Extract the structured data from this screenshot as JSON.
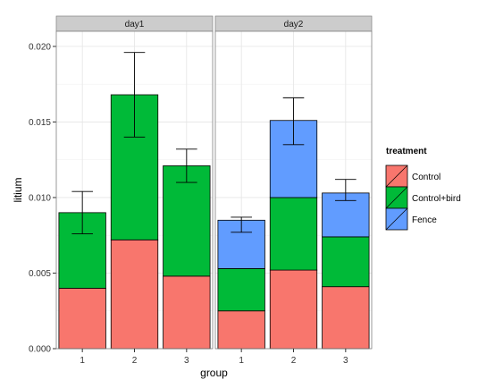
{
  "chart_data": {
    "type": "bar",
    "stacked": true,
    "xlabel": "group",
    "ylabel": "litium",
    "ylim": [
      0,
      0.021
    ],
    "yticks": [
      0.0,
      0.005,
      0.01,
      0.015,
      0.02
    ],
    "ytick_labels": [
      "0.000",
      "0.005",
      "0.010",
      "0.015",
      "0.020"
    ],
    "categories": [
      "1",
      "2",
      "3"
    ],
    "grid": true,
    "legend": {
      "title": "treatment",
      "placement": "right",
      "entries": [
        {
          "name": "Control",
          "color": "#F8766D"
        },
        {
          "name": "Control+bird",
          "color": "#00BA38"
        },
        {
          "name": "Fence",
          "color": "#619CFF"
        }
      ]
    },
    "facets": [
      {
        "label": "day1",
        "series": [
          {
            "name": "Control",
            "values": [
              0.004,
              0.0072,
              0.0048
            ]
          },
          {
            "name": "Control+bird",
            "values": [
              0.005,
              0.0096,
              0.0073
            ]
          },
          {
            "name": "Fence",
            "values": [
              0,
              0,
              0
            ]
          }
        ],
        "totals": [
          0.009,
          0.0168,
          0.0121
        ],
        "error_bars": [
          [
            0.0076,
            0.0104
          ],
          [
            0.014,
            0.0196
          ],
          [
            0.011,
            0.0132
          ]
        ]
      },
      {
        "label": "day2",
        "series": [
          {
            "name": "Control",
            "values": [
              0.0025,
              0.0052,
              0.0041
            ]
          },
          {
            "name": "Control+bird",
            "values": [
              0.0028,
              0.0048,
              0.0033
            ]
          },
          {
            "name": "Fence",
            "values": [
              0.0032,
              0.0051,
              0.0029
            ]
          }
        ],
        "totals": [
          0.0085,
          0.0151,
          0.0103
        ],
        "error_bars": [
          [
            0.0077,
            0.0087
          ],
          [
            0.0135,
            0.0166
          ],
          [
            0.0098,
            0.0112
          ]
        ]
      }
    ]
  }
}
